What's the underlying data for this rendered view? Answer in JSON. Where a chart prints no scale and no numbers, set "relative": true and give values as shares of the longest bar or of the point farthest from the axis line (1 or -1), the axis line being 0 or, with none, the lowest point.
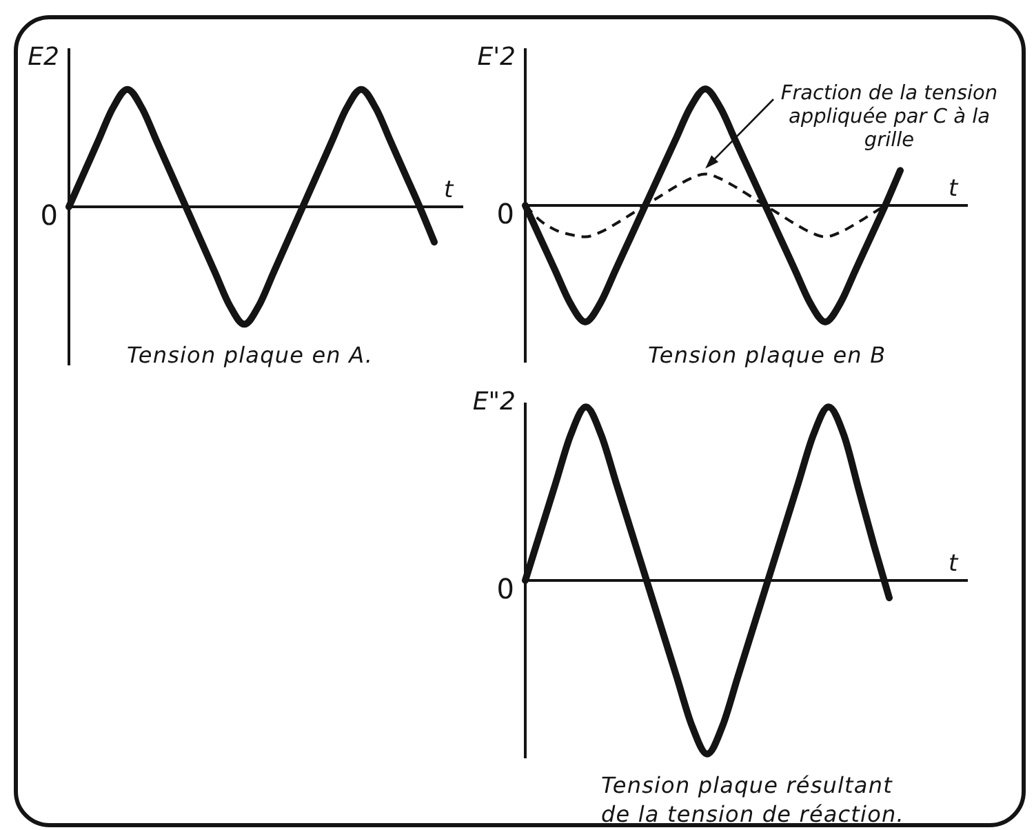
{
  "chart_data": [
    {
      "type": "line",
      "title": "Tension plaque en A.",
      "xlabel": "t",
      "ylabel": "E2",
      "relative": true,
      "marker": "none",
      "categories": [
        null,
        null,
        null,
        null,
        null,
        null,
        null,
        null,
        null,
        null,
        null,
        null,
        null,
        null,
        null,
        null,
        null,
        null,
        null,
        null,
        null,
        null,
        null,
        null,
        null,
        null
      ],
      "series": [
        {
          "color": "#141414",
          "values": [
            0,
            0.28,
            0.56,
            0.84,
            1,
            0.84,
            0.56,
            0.28,
            0,
            -0.28,
            -0.56,
            -0.84,
            -1,
            -0.84,
            -0.56,
            -0.28,
            0,
            0.28,
            0.56,
            0.84,
            1,
            0.84,
            0.56,
            0.28,
            0,
            -0.3
          ]
        }
      ],
      "annotations": [
        "0"
      ]
    },
    {
      "type": "line",
      "title": "Tension plaque en B",
      "xlabel": "t",
      "ylabel": "E'2",
      "relative": true,
      "marker": "none",
      "categories": [
        null,
        null,
        null,
        null,
        null,
        null,
        null,
        null,
        null,
        null,
        null,
        null,
        null,
        null,
        null,
        null,
        null,
        null,
        null,
        null,
        null,
        null,
        null,
        null,
        null,
        null
      ],
      "series": [
        {
          "color": "#141414",
          "line_style": "solid",
          "values": [
            0,
            -0.28,
            -0.56,
            -0.84,
            -1,
            -0.84,
            -0.56,
            -0.28,
            0,
            0.28,
            0.56,
            0.84,
            1,
            0.84,
            0.56,
            0.28,
            0,
            -0.28,
            -0.56,
            -0.84,
            -1,
            -0.84,
            -0.56,
            -0.28,
            0,
            0.3
          ]
        },
        {
          "color": "#141414",
          "line_style": "dashed",
          "values": [
            0,
            -0.13,
            -0.21,
            -0.25,
            -0.27,
            -0.23,
            -0.16,
            -0.08,
            0,
            0.08,
            0.16,
            0.23,
            0.27,
            0.23,
            0.16,
            0.08,
            0,
            -0.08,
            -0.16,
            -0.23,
            -0.27,
            -0.23,
            -0.16,
            -0.08,
            0,
            null
          ]
        }
      ],
      "annotations": [
        "0",
        "Fraction de la tension appliquée par C à la grille"
      ]
    },
    {
      "type": "line",
      "title": "Tension plaque résultant de la tension de réaction.",
      "xlabel": "t",
      "ylabel": "E\"2",
      "relative": true,
      "marker": "none",
      "categories": [
        null,
        null,
        null,
        null,
        null,
        null,
        null,
        null,
        null,
        null,
        null,
        null,
        null,
        null,
        null,
        null,
        null,
        null,
        null,
        null,
        null,
        null,
        null,
        null,
        null
      ],
      "series": [
        {
          "color": "#141414",
          "values": [
            0,
            0.28,
            0.56,
            0.84,
            1,
            0.84,
            0.56,
            0.28,
            0,
            -0.28,
            -0.56,
            -0.84,
            -1,
            -0.84,
            -0.56,
            -0.28,
            0,
            0.28,
            0.56,
            0.84,
            1,
            0.84,
            0.52,
            0.2,
            -0.1
          ]
        }
      ],
      "annotations": [
        "0"
      ]
    }
  ]
}
